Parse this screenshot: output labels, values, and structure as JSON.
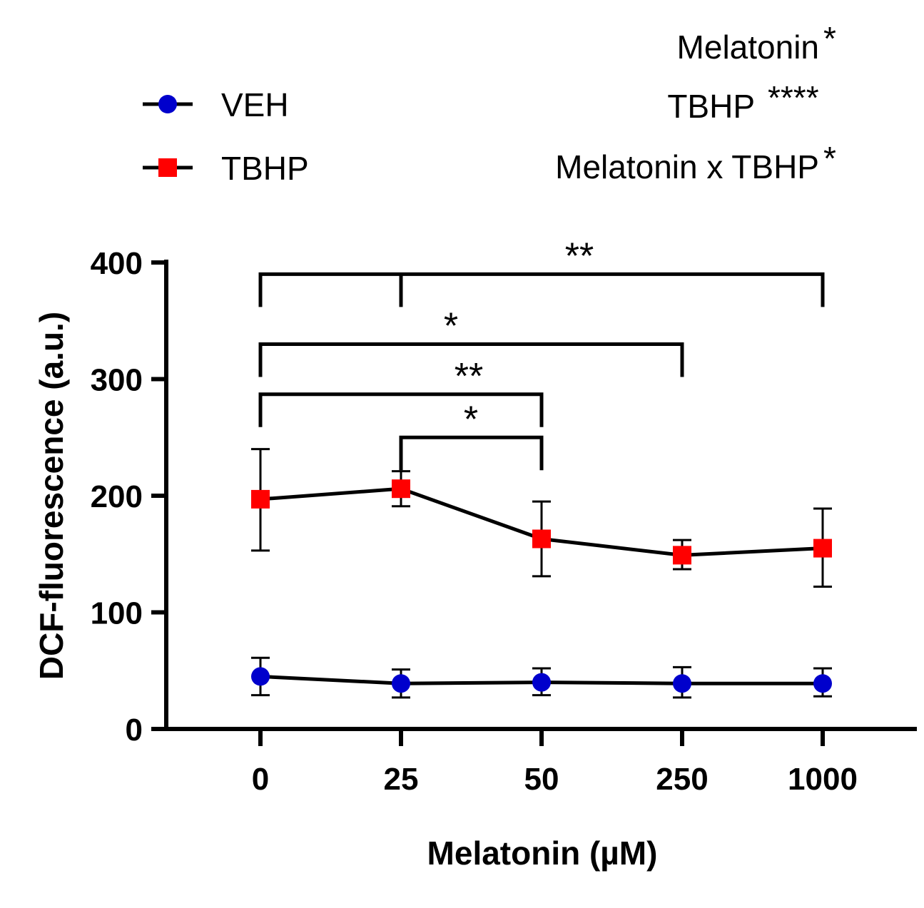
{
  "chart_data": {
    "type": "line",
    "title": "",
    "xlabel": "Melatonin (µM)",
    "ylabel": "DCF-fluorescence (a.u.)",
    "categories": [
      "0",
      "25",
      "50",
      "250",
      "1000"
    ],
    "ylim": [
      0,
      400
    ],
    "yticks": [
      0,
      100,
      200,
      300,
      400
    ],
    "grid": false,
    "legend_position": "top-left",
    "series": [
      {
        "name": "VEH",
        "color": "#0000cc",
        "marker": "circle",
        "values": [
          45,
          39,
          40,
          39,
          39
        ],
        "err_upper": [
          61,
          51,
          52,
          53,
          52
        ],
        "err_lower": [
          29,
          27,
          29,
          27,
          28
        ]
      },
      {
        "name": "TBHP",
        "color": "#ff0000",
        "marker": "square",
        "values": [
          197,
          206,
          163,
          149,
          155
        ],
        "err_upper": [
          240,
          221,
          195,
          162,
          189
        ],
        "err_lower": [
          153,
          191,
          131,
          137,
          122
        ]
      }
    ],
    "anova_annotations": [
      {
        "label": "Melatonin",
        "stars": "*"
      },
      {
        "label": "TBHP",
        "stars": "****"
      },
      {
        "label": "Melatonin x TBHP",
        "stars": "*"
      }
    ],
    "significance_brackets": [
      {
        "from": "0",
        "to": "1000",
        "mid": "25",
        "y": 390,
        "stars": "**"
      },
      {
        "from": "0",
        "to": "250",
        "y": 330,
        "stars": "*"
      },
      {
        "from": "0",
        "to": "50",
        "y": 287,
        "stars": "**"
      },
      {
        "from": "25",
        "to": "50",
        "y": 250,
        "stars": "*"
      }
    ]
  }
}
